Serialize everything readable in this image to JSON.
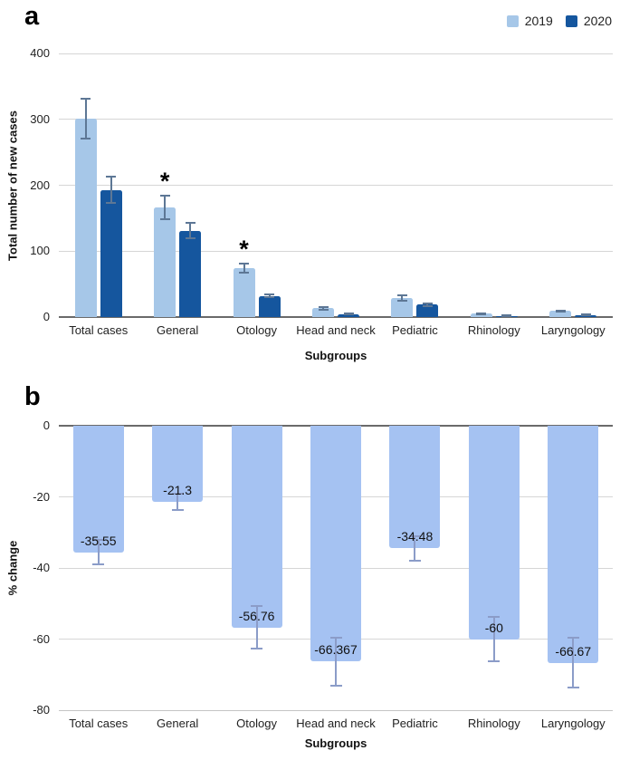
{
  "figure": {
    "panel_a": {
      "label": "a"
    },
    "panel_b": {
      "label": "b"
    }
  },
  "colors": {
    "bar_2019": "#a6c7e8",
    "bar_2020": "#15569e",
    "bar_pct_change": "#a5c2f2",
    "error_bar_a": "#5d7795",
    "error_bar_b": "#8b9cc8",
    "gridline": "#d6d6d6",
    "zero_line": "#6a6a6a"
  },
  "chart_data": [
    {
      "type": "bar",
      "panel": "a",
      "categories": [
        "Total cases",
        "General",
        "Otology",
        "Head and neck",
        "Pediatric",
        "Rhinology",
        "Laryngology"
      ],
      "series": [
        {
          "name": "2019",
          "color": "#a6c7e8",
          "values": [
            301,
            166,
            74,
            13.5,
            29,
            5,
            9
          ],
          "errors": [
            30,
            18,
            7,
            2,
            4,
            1,
            1.2
          ]
        },
        {
          "name": "2020",
          "color": "#15569e",
          "values": [
            193,
            131,
            32,
            4.5,
            19,
            2,
            3
          ],
          "errors": [
            20,
            12,
            2,
            0.5,
            2,
            0.5,
            0.5
          ]
        }
      ],
      "annotations": [
        {
          "category": "General",
          "series": "2019",
          "text": "*"
        },
        {
          "category": "Otology",
          "series": "2019",
          "text": "*"
        }
      ],
      "ylabel": "Total number of new cases",
      "xlabel": "Subgroups",
      "ylim": [
        0,
        400
      ],
      "yticks": [
        400,
        300,
        200,
        100,
        0
      ],
      "legend_position": "top-right",
      "grid": true
    },
    {
      "type": "bar",
      "panel": "b",
      "categories": [
        "Total cases",
        "General",
        "Otology",
        "Head and neck",
        "Pediatric",
        "Rhinology",
        "Laryngology"
      ],
      "values": [
        -35.55,
        -21.3,
        -56.76,
        -66.367,
        -34.48,
        -60,
        -66.67
      ],
      "value_labels": [
        "-35.55",
        "-21.3",
        "-56.76",
        "-66.367",
        "-34.48",
        "-60",
        "-66.67"
      ],
      "errors": [
        3.5,
        2.3,
        6,
        6.8,
        3.5,
        6.3,
        7
      ],
      "bar_color": "#a5c2f2",
      "ylabel": "% change",
      "xlabel": "Subgroups",
      "ylim": [
        -80,
        0
      ],
      "yticks": [
        0,
        -20,
        -40,
        -60,
        -80
      ],
      "grid": true
    }
  ]
}
